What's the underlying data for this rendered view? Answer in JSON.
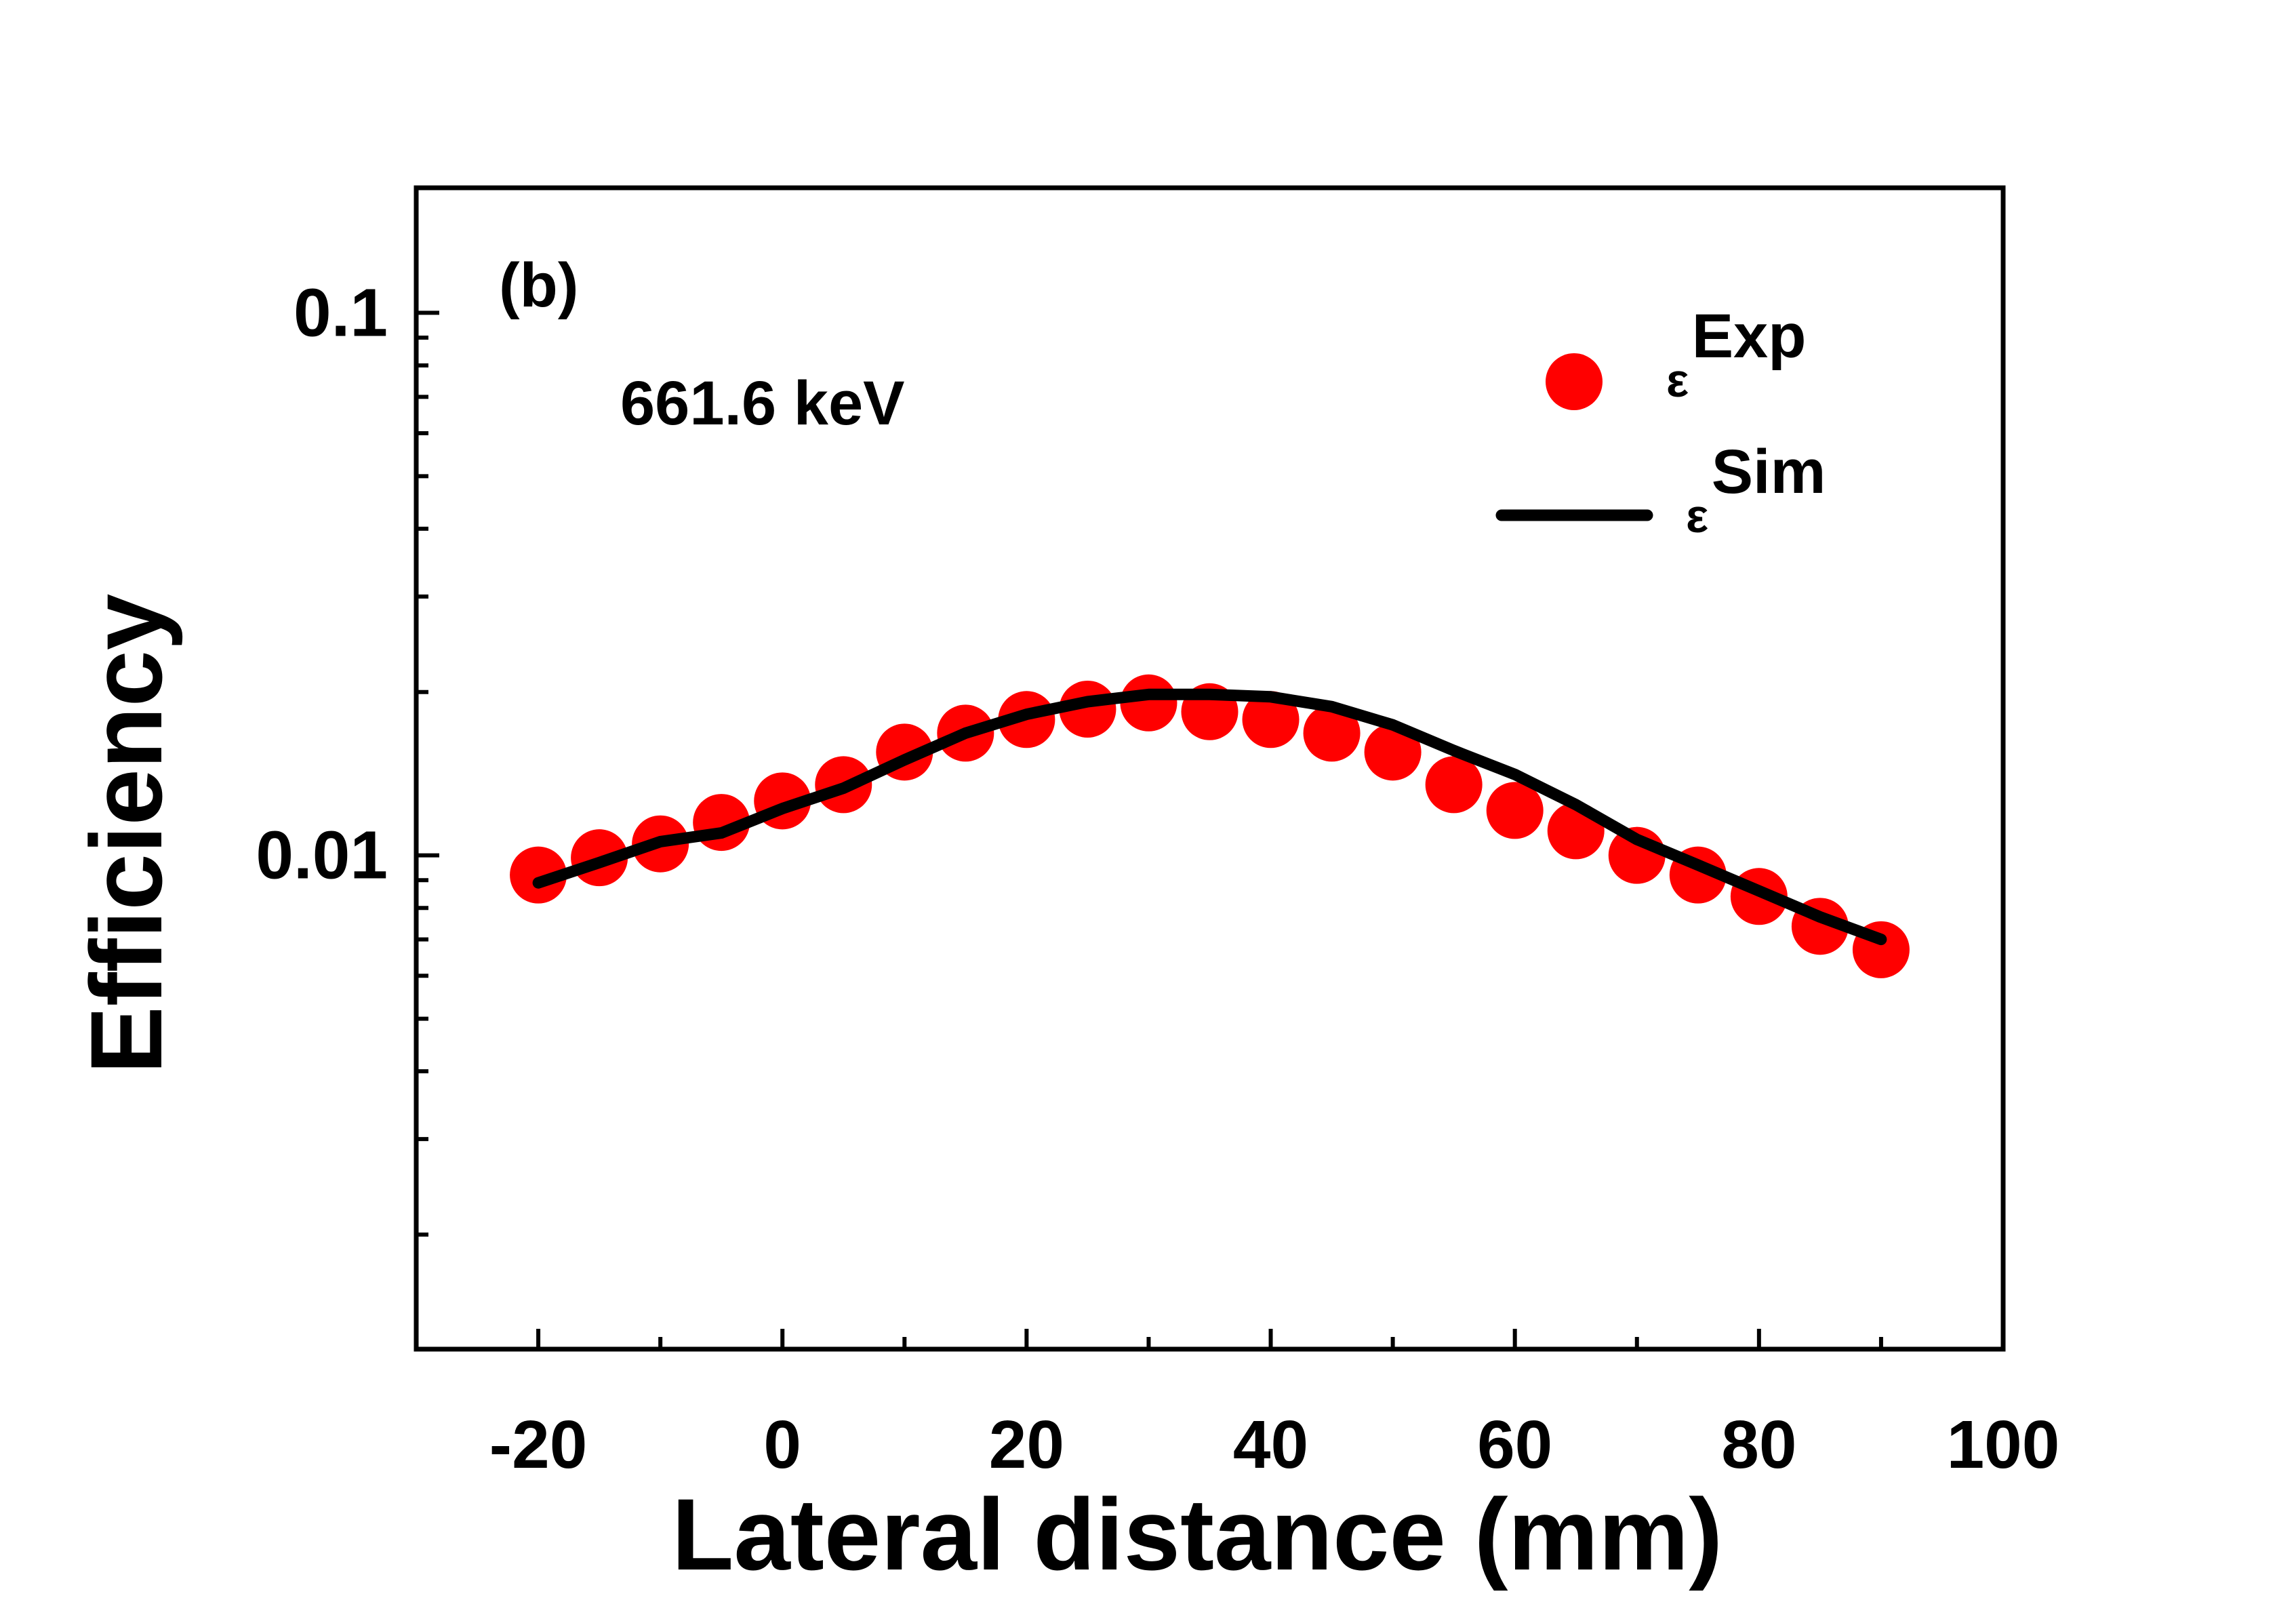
{
  "chart_data": {
    "type": "scatter",
    "title": "",
    "xlabel": "Lateral distance (mm)",
    "ylabel": "Efficiency",
    "xscale": "linear",
    "yscale": "log",
    "xlim": [
      -30,
      100
    ],
    "ylim": [
      0.00123,
      0.17
    ],
    "xticks": [
      -20,
      0,
      20,
      40,
      60,
      80,
      100
    ],
    "xtick_labels": [
      "-20",
      "0",
      "20",
      "40",
      "60",
      "80",
      "100"
    ],
    "yticks": [
      0.01,
      0.1
    ],
    "ytick_labels": [
      "0.01",
      "0.1"
    ],
    "annotations": [
      "(b)",
      "661.6 keV"
    ],
    "legend_position": "top-right",
    "series": [
      {
        "name": "εExp",
        "legend_base": "ε",
        "legend_sup": "Exp",
        "style": "markers",
        "color": "#ff0000",
        "x": [
          -20,
          -15,
          -10,
          -5,
          0,
          5,
          10,
          15,
          20,
          25,
          30,
          35,
          40,
          45,
          50,
          55,
          60,
          65,
          70,
          75,
          80,
          85,
          90
        ],
        "y": [
          0.0092,
          0.0099,
          0.0105,
          0.0115,
          0.0126,
          0.0135,
          0.0155,
          0.0168,
          0.0178,
          0.0186,
          0.0191,
          0.0184,
          0.0178,
          0.0168,
          0.0155,
          0.0135,
          0.0121,
          0.0111,
          0.01,
          0.0092,
          0.0084,
          0.0074,
          0.0067
        ]
      },
      {
        "name": "εSim",
        "legend_base": "ε",
        "legend_sup": "Sim",
        "style": "line",
        "color": "#000000",
        "x": [
          -20,
          -15,
          -10,
          -5,
          0,
          5,
          10,
          15,
          20,
          25,
          30,
          35,
          40,
          45,
          50,
          55,
          60,
          65,
          70,
          75,
          80,
          85,
          90
        ],
        "y": [
          0.0089,
          0.0097,
          0.0106,
          0.011,
          0.0122,
          0.0133,
          0.015,
          0.0168,
          0.0182,
          0.0192,
          0.0198,
          0.0198,
          0.0196,
          0.0188,
          0.0174,
          0.0156,
          0.0141,
          0.0124,
          0.0107,
          0.0096,
          0.0086,
          0.0077,
          0.007
        ]
      }
    ]
  }
}
